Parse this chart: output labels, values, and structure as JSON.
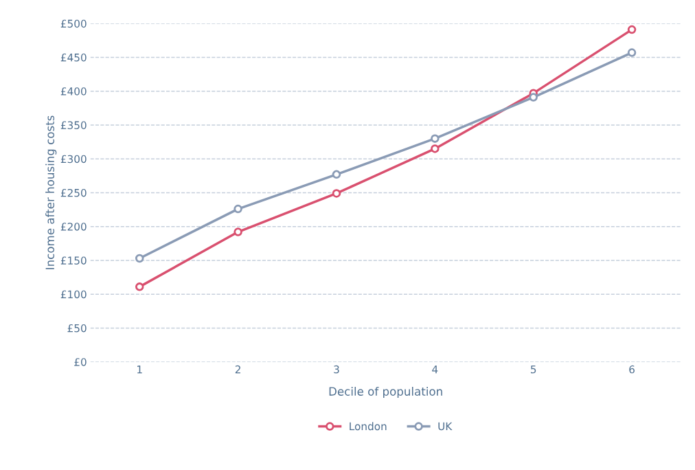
{
  "chart_data": {
    "type": "line",
    "xlabel": "Decile of population",
    "ylabel": "Income after housing costs",
    "categories": [
      "1",
      "2",
      "3",
      "4",
      "5",
      "6"
    ],
    "series": [
      {
        "name": "London",
        "color": "#d9506f",
        "values": [
          111,
          192,
          249,
          315,
          397,
          491
        ]
      },
      {
        "name": "UK",
        "color": "#8a9bb5",
        "values": [
          153,
          226,
          277,
          330,
          391,
          457
        ]
      }
    ],
    "ylim": [
      0,
      500
    ],
    "yticks": [
      {
        "value": 0,
        "label": "£0"
      },
      {
        "value": 50,
        "label": "£50"
      },
      {
        "value": 100,
        "label": "£100"
      },
      {
        "value": 150,
        "label": "£150"
      },
      {
        "value": 200,
        "label": "£200"
      },
      {
        "value": 250,
        "label": "£250"
      },
      {
        "value": 300,
        "label": "£300"
      },
      {
        "value": 350,
        "label": "£350"
      },
      {
        "value": 400,
        "label": "£400"
      },
      {
        "value": 450,
        "label": "£450"
      },
      {
        "value": 500,
        "label": "£500"
      }
    ],
    "grid": "y",
    "legend": "bottom",
    "marker": "circle",
    "line_style": "solid"
  }
}
